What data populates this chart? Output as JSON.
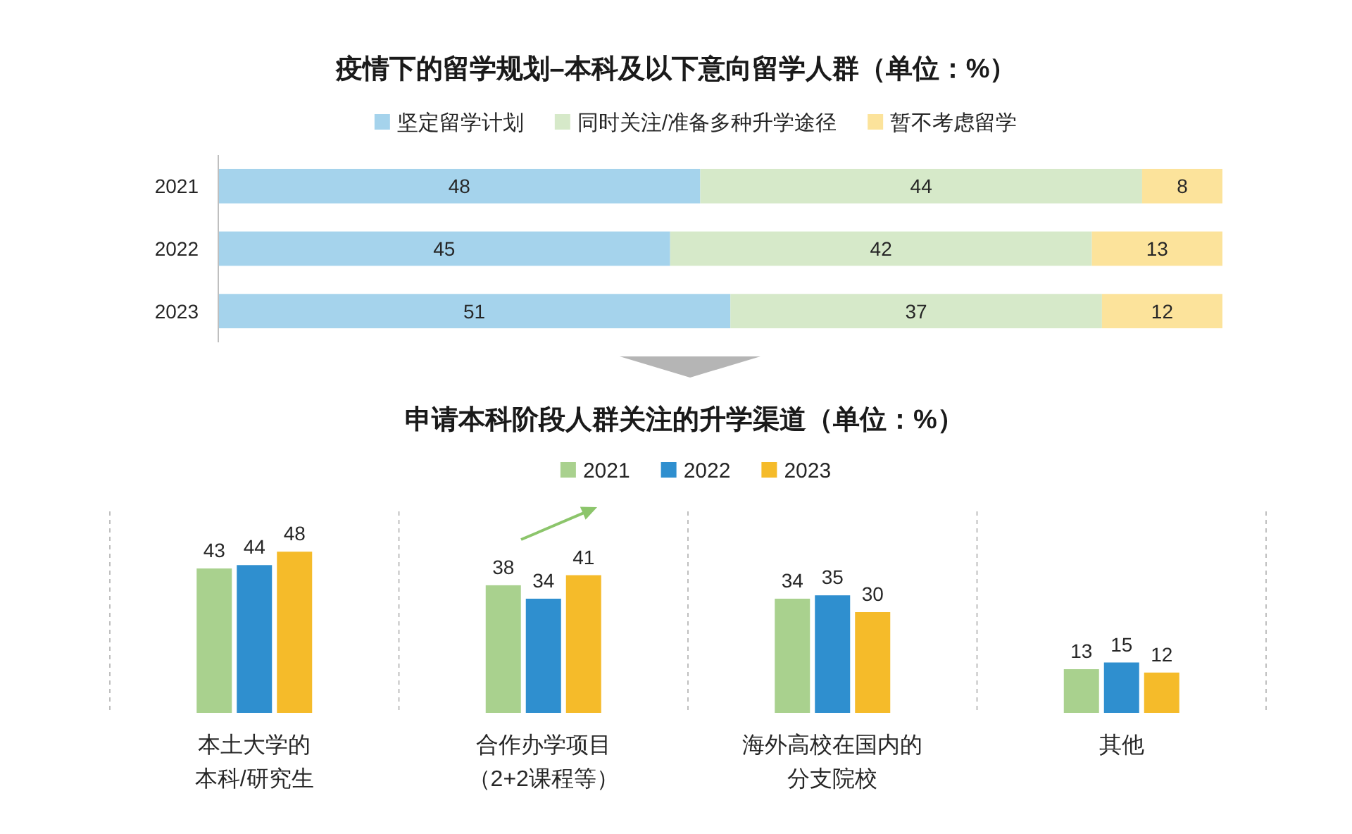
{
  "chart_data": [
    {
      "type": "bar",
      "orientation": "horizontal",
      "stacked": true,
      "title": "疫情下的留学规划–本科及以下意向留学人群（单位：%）",
      "categories": [
        "2021",
        "2022",
        "2023"
      ],
      "series": [
        {
          "name": "坚定留学计划",
          "color": "#a5d3ec",
          "values": [
            48,
            45,
            51
          ]
        },
        {
          "name": "同时关注/准备多种升学途径",
          "color": "#d6e9c9",
          "values": [
            44,
            42,
            37
          ]
        },
        {
          "name": "暂不考虑留学",
          "color": "#fce39b",
          "values": [
            8,
            13,
            12
          ]
        }
      ],
      "xlim": [
        0,
        100
      ],
      "data_labels": true,
      "legend": "top",
      "tick_labels": "y"
    },
    {
      "type": "bar",
      "title": "申请本科阶段人群关注的升学渠道（单位：%）",
      "categories": [
        "本土大学的本科/研究生",
        "合作办学项目（2+2课程等）",
        "海外高校在国内的分支院校",
        "其他"
      ],
      "series": [
        {
          "name": "2021",
          "color": "#a9d18e",
          "values": [
            43,
            38,
            34,
            13
          ]
        },
        {
          "name": "2022",
          "color": "#2f8fcf",
          "values": [
            44,
            34,
            35,
            15
          ]
        },
        {
          "name": "2023",
          "color": "#f5bb2a",
          "values": [
            48,
            41,
            30,
            12
          ]
        }
      ],
      "ylim": [
        0,
        60
      ],
      "data_labels": true,
      "legend": "top",
      "grid": "x",
      "tick_labels": "x"
    }
  ]
}
